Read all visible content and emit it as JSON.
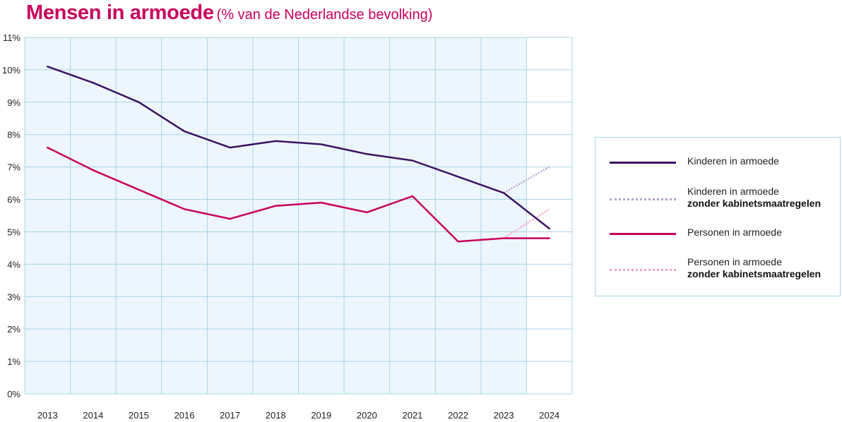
{
  "title": "Mensen in armoede",
  "subtitle": "(% van de Nederlandse bevolking)",
  "chart_data": {
    "type": "line",
    "title": "Mensen in armoede",
    "subtitle": "(% van de Nederlandse bevolking)",
    "xlabel": "",
    "ylabel": "",
    "categories": [
      "2013",
      "2014",
      "2015",
      "2016",
      "2017",
      "2018",
      "2019",
      "2020",
      "2021",
      "2022",
      "2023",
      "2024"
    ],
    "y_ticks": [
      "0%",
      "1%",
      "2%",
      "3%",
      "4%",
      "5%",
      "6%",
      "7%",
      "8%",
      "9%",
      "10%",
      "11%"
    ],
    "ylim": [
      0,
      11
    ],
    "grid": true,
    "shaded_period": [
      "2013",
      "2023"
    ],
    "legend_position": "right",
    "series": [
      {
        "name": "Kinderen in armoede",
        "style": "solid",
        "color": "#3b1462",
        "values": [
          10.1,
          9.6,
          9.0,
          8.1,
          7.6,
          7.8,
          7.7,
          7.4,
          7.2,
          6.7,
          6.2,
          5.1
        ]
      },
      {
        "name": "Kinderen in armoede zonder kabinetsmaatregelen",
        "style": "dotted",
        "color": "#b7a3cf",
        "values": [
          null,
          null,
          null,
          null,
          null,
          null,
          null,
          null,
          null,
          null,
          6.2,
          7.0
        ]
      },
      {
        "name": "Personen in armoede",
        "style": "solid",
        "color": "#c8005b",
        "values": [
          7.6,
          6.9,
          6.3,
          5.7,
          5.4,
          5.8,
          5.9,
          5.6,
          6.1,
          4.7,
          4.8,
          4.8
        ]
      },
      {
        "name": "Personen in armoede zonder kabinetsmaatregelen",
        "style": "dotted",
        "color": "#f2a3c8",
        "values": [
          null,
          null,
          null,
          null,
          null,
          null,
          null,
          null,
          null,
          null,
          4.8,
          5.7
        ]
      }
    ]
  },
  "legend": {
    "items": [
      {
        "line1": "Kinderen in armoede",
        "line2": "",
        "style": "solid",
        "color": "#3b1462"
      },
      {
        "line1": "Kinderen in armoede",
        "line2": "zonder kabinetsmaatregelen",
        "style": "dotted",
        "color": "#b7a3cf"
      },
      {
        "line1": "Personen in armoede",
        "line2": "",
        "style": "solid",
        "color": "#c8005b"
      },
      {
        "line1": "Personen in armoede",
        "line2": "zonder kabinetsmaatregelen",
        "style": "dotted",
        "color": "#f2a3c8"
      }
    ]
  }
}
